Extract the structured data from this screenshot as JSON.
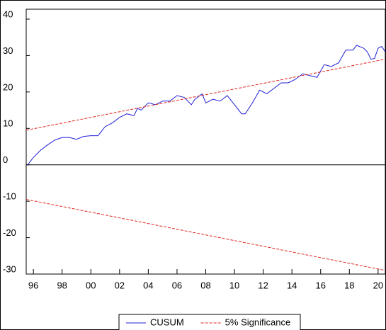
{
  "chart_data": {
    "type": "line",
    "xlim": [
      1995.5,
      2020.5
    ],
    "ylim": [
      -30,
      40
    ],
    "xticks": [
      {
        "value": 1996,
        "label": "96"
      },
      {
        "value": 1998,
        "label": "98"
      },
      {
        "value": 2000,
        "label": "00"
      },
      {
        "value": 2002,
        "label": "02"
      },
      {
        "value": 2004,
        "label": "04"
      },
      {
        "value": 2006,
        "label": "06"
      },
      {
        "value": 2008,
        "label": "08"
      },
      {
        "value": 2010,
        "label": "10"
      },
      {
        "value": 2012,
        "label": "12"
      },
      {
        "value": 2014,
        "label": "14"
      },
      {
        "value": 2016,
        "label": "16"
      },
      {
        "value": 2018,
        "label": "18"
      },
      {
        "value": 2020,
        "label": "20"
      }
    ],
    "yticks": [
      40,
      30,
      20,
      10,
      0,
      -10,
      -20,
      -30
    ],
    "series": [
      {
        "name": "CUSUM",
        "color": "#1f1fd6",
        "x": [
          1995.6,
          1996,
          1996.5,
          1997,
          1997.5,
          1998,
          1998.5,
          1999,
          1999.5,
          2000,
          2000.5,
          2001,
          2001.5,
          2002,
          2002.5,
          2003,
          2003.25,
          2003.5,
          2004,
          2004.5,
          2005,
          2005.5,
          2006,
          2006.5,
          2007,
          2007.25,
          2007.75,
          2008,
          2008.5,
          2009,
          2009.5,
          2010,
          2010.5,
          2010.75,
          2011.25,
          2011.75,
          2012.25,
          2012.75,
          2013.25,
          2013.75,
          2014.25,
          2014.75,
          2015.25,
          2015.75,
          2016.25,
          2016.75,
          2017.25,
          2017.75,
          2018.25,
          2018.5,
          2019,
          2019.25,
          2019.5,
          2019.75,
          2020,
          2020.25,
          2020.5
        ],
        "values": [
          0,
          2,
          4,
          5.5,
          6.8,
          7.5,
          7.5,
          7,
          7.8,
          8,
          8,
          10.5,
          11.5,
          13,
          14,
          13.5,
          15.5,
          15,
          17,
          16.5,
          17.5,
          17.5,
          19,
          18.5,
          16.5,
          18,
          19.5,
          17,
          18,
          17.5,
          19,
          16.5,
          14,
          14,
          17,
          20.5,
          19.5,
          21,
          22.5,
          22.5,
          23.5,
          25,
          24.5,
          24,
          27.5,
          27,
          28,
          31.5,
          31.5,
          32.8,
          32,
          31,
          29,
          29.2,
          32,
          32.5,
          31
        ]
      },
      {
        "name": "5% Significance",
        "color": "#e0241b",
        "dashed": true,
        "x": [
          1995.5,
          2020.5
        ],
        "values": [
          9.5,
          29
        ],
        "lower_values": [
          -9.5,
          -29
        ]
      }
    ],
    "legend": "bottom"
  }
}
